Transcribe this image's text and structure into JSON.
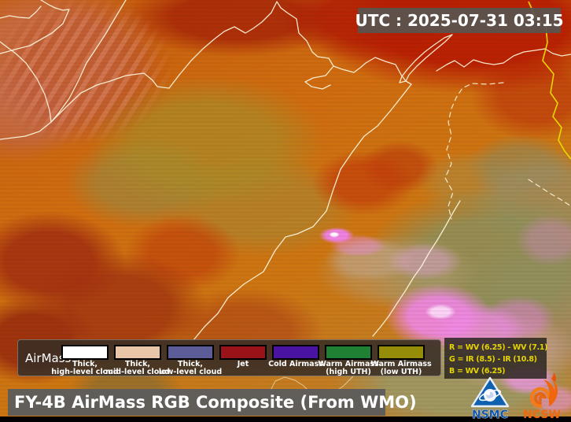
{
  "timestamp": {
    "label": "UTC : 2025-07-31 03:15"
  },
  "title": {
    "text": "FY-4B AirMass RGB Composite (From WMO)"
  },
  "legend": {
    "label": "AirMass",
    "items": [
      {
        "color": "#ffffff",
        "line1": "Thick,",
        "line2": "high-level cloud"
      },
      {
        "color": "#e9c6a8",
        "line1": "Thick,",
        "line2": "mid-level cloud"
      },
      {
        "color": "#5c5c99",
        "line1": "Thick,",
        "line2": "low-level cloud"
      },
      {
        "color": "#991318",
        "line1": "Jet",
        "line2": ""
      },
      {
        "color": "#4a13a2",
        "line1": "Cold Airmass",
        "line2": ""
      },
      {
        "color": "#1f8034",
        "line1": "Warm Airmass",
        "line2": "(high UTH)"
      },
      {
        "color": "#958d07",
        "line1": "Warm Airmass",
        "line2": "(low UTH)"
      }
    ],
    "formula": {
      "lines": [
        "R = WV (6.25) - WV (7.1)",
        "G = IR (8.5) - IR (10.8)",
        "B = WV (6.25)"
      ],
      "color": "#e6d400"
    }
  },
  "map": {
    "border_color": "#fdf7dd",
    "highlight_border_color": "#e8e000"
  },
  "logos": {
    "nsmc": {
      "text": "NSMC",
      "color": "#1055aa"
    },
    "ncsw": {
      "text": "NCSW",
      "color": "#f06810"
    }
  }
}
